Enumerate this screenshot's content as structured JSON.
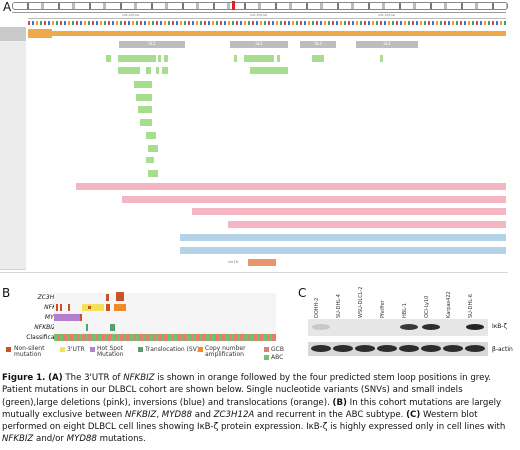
{
  "panel_a": {
    "letter": "A",
    "ruler_labels": [
      "131,370 kb",
      "131,370 kb",
      "131,370 kb"
    ],
    "stem_loops": [
      "SL1",
      "SL2",
      "SL3",
      "SL4"
    ],
    "translocation_label": "chr16"
  },
  "panel_b": {
    "letter": "B",
    "genes": [
      "ZC3H12A",
      "NFKBIZ",
      "MYD88",
      "NFKBIZ SV",
      "Classification"
    ],
    "legend": [
      {
        "label": "Non-silent mutation",
        "color": "#c8532a"
      },
      {
        "label": "3'UTR",
        "color": "#f2e25a"
      },
      {
        "label": "Hot Spot Mutation",
        "color": "#b57fcf"
      },
      {
        "label": "Translocation (SV)",
        "color": "#5a9e6f"
      },
      {
        "label": "Copy number amplification",
        "color": "#f08a2a"
      },
      {
        "label": "GCB",
        "color": "#e87d6f"
      },
      {
        "label": "ABC",
        "color": "#6fc26f"
      }
    ]
  },
  "panel_c": {
    "letter": "C",
    "cell_lines": [
      "DOHH-2",
      "SU-DHL-4",
      "WSU-DLCL-2",
      "Pfeiffer",
      "HBL-1",
      "OCI-Ly10",
      "Karpas422",
      "SU-DHL-6"
    ],
    "blot_labels": [
      "IκB-ζ",
      "β-actin"
    ],
    "ikbz_intensity": [
      0.15,
      0.0,
      0.0,
      0.0,
      0.85,
      0.9,
      0.0,
      0.95
    ],
    "actin_intensity": [
      0.9,
      0.9,
      0.9,
      0.9,
      0.9,
      0.9,
      0.9,
      0.9
    ]
  },
  "caption": {
    "figure_label": "Figure 1.",
    "a_tag": "(A)",
    "a_text_1": " The 3'UTR of ",
    "gene_nfkbiz_1": "NFKBIZ",
    "a_text_2": " is shown in orange followed by the four predicted stem loop positions in grey. Patient mutations in our DLBCL cohort are shown below. Single nucleotide variants (SNVs) and small indels (green),large deletions (pink), inversions (blue) and translocations (orange). ",
    "b_tag": "(B)",
    "b_text_1": " In this cohort mutations are largely mutually exclusive between ",
    "gene_nfkbiz_2": "NFKBIZ",
    "b_text_2": ", ",
    "gene_myd88_1": "MYD88",
    "b_text_3": " and ",
    "gene_zc3h12a": "ZC3H12A",
    "b_text_4": " and recurrent in the ABC subtype. ",
    "c_tag": "(C)",
    "c_text_1": " Western blot performed on eight DLBCL cell lines showing IκB-ζ protein expression. IκB-ζ is highly expressed only in cell lines with ",
    "gene_nfkbiz_3": "NFKBIZ",
    "c_text_2": " and/or ",
    "gene_myd88_2": "MYD88",
    "c_text_3": " mutations."
  }
}
